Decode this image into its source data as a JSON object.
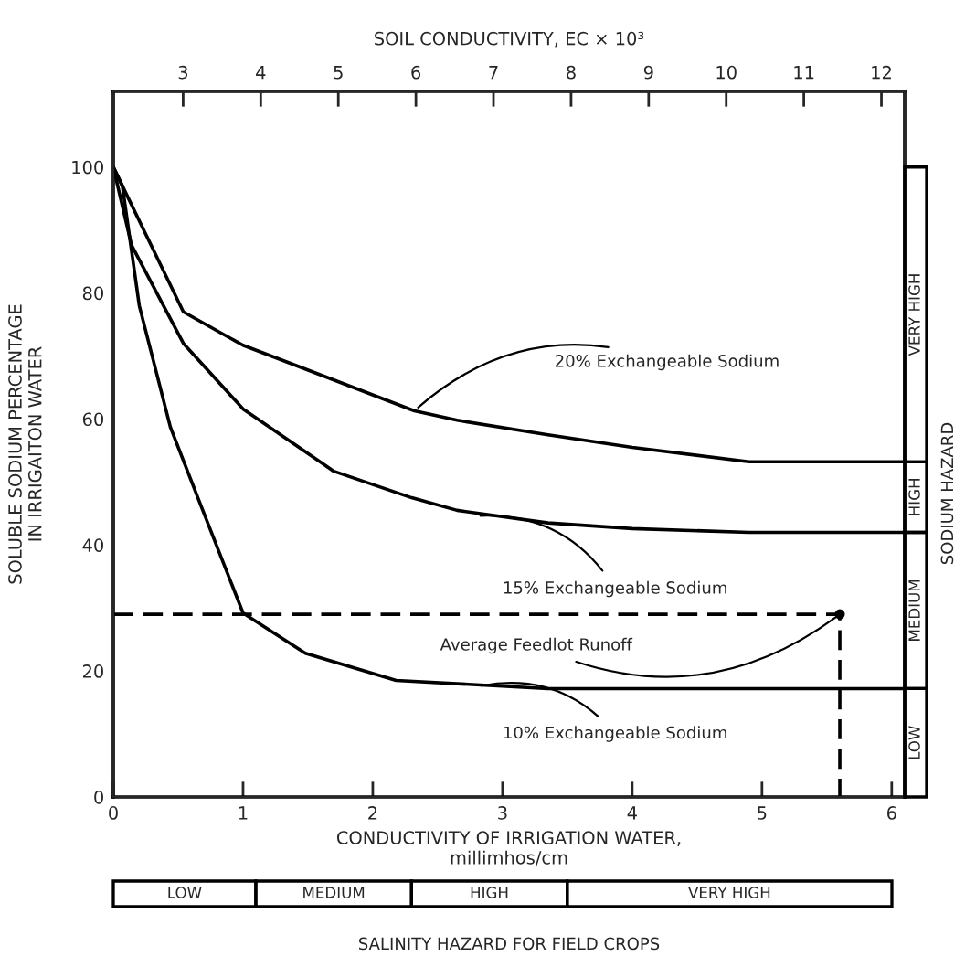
{
  "chart_data": {
    "type": "line",
    "x2label": "SOIL CONDUCTIVITY, EC × 10³",
    "xlabel": "CONDUCTIVITY OF IRRIGATION WATER,\nmillimhos/cm",
    "ylabel": "SOLUBLE SODIUM PERCENTAGE\nIN IRRIGAITON WATER",
    "xlim": [
      0,
      6.1
    ],
    "xticks": [
      0,
      1,
      2,
      3,
      4,
      5,
      6
    ],
    "x2lim": [
      2.1,
      12.3
    ],
    "x2ticks": [
      3,
      4,
      5,
      6,
      7,
      8,
      9,
      10,
      11,
      12
    ],
    "ylim": [
      0,
      112
    ],
    "yticks": [
      0,
      20,
      40,
      60,
      80,
      100
    ],
    "grid": false,
    "legend": false,
    "marker": "none",
    "series": [
      {
        "color": "#000000",
        "line_style": "solid",
        "x": [
          0,
          0.07,
          0.54,
          1.0,
          1.7,
          2.32,
          2.65,
          3.35,
          4.0,
          4.9,
          6.1
        ],
        "values": [
          100,
          97,
          77,
          71.7,
          66.2,
          61.3,
          59.8,
          57.5,
          55.5,
          53.2,
          53.2
        ]
      },
      {
        "color": "#000000",
        "line_style": "solid",
        "x": [
          0,
          0.14,
          0.54,
          1.0,
          1.7,
          2.3,
          2.65,
          3.35,
          4.0,
          4.9,
          6.1
        ],
        "values": [
          100,
          87.6,
          72,
          61.6,
          51.7,
          47.5,
          45.5,
          43.5,
          42.6,
          42,
          42
        ]
      },
      {
        "color": "#000000",
        "line_style": "solid",
        "x": [
          0,
          0.07,
          0.2,
          0.44,
          0.68,
          1.0,
          1.48,
          2.18,
          3.35,
          6.1
        ],
        "values": [
          100,
          97,
          78,
          58.7,
          46,
          29.2,
          22.8,
          18.5,
          17.2,
          17.2
        ]
      },
      {
        "color": "#000000",
        "line_style": "dashed",
        "x": [
          0,
          5.6,
          5.6
        ],
        "values": [
          29,
          29,
          0
        ]
      }
    ],
    "annotations": [
      {
        "text": "20% Exchangeable Sodium",
        "x": 2.32,
        "y": 61.3
      },
      {
        "text": "15% Exchangeable Sodium",
        "x": 2.79,
        "y": 44.6
      },
      {
        "text": "10% Exchangeable Sodium",
        "x": 2.8,
        "y": 17.5
      },
      {
        "text": "Average Feedlot Runoff",
        "x": 5.6,
        "y": 29
      },
      "SODIUM HAZARD",
      "SALINITY HAZARD FOR FIELD CROPS",
      "VERY HIGH",
      "HIGH",
      "MEDIUM",
      "LOW",
      "LOW",
      "MEDIUM",
      "HIGH",
      "VERY HIGH"
    ]
  }
}
